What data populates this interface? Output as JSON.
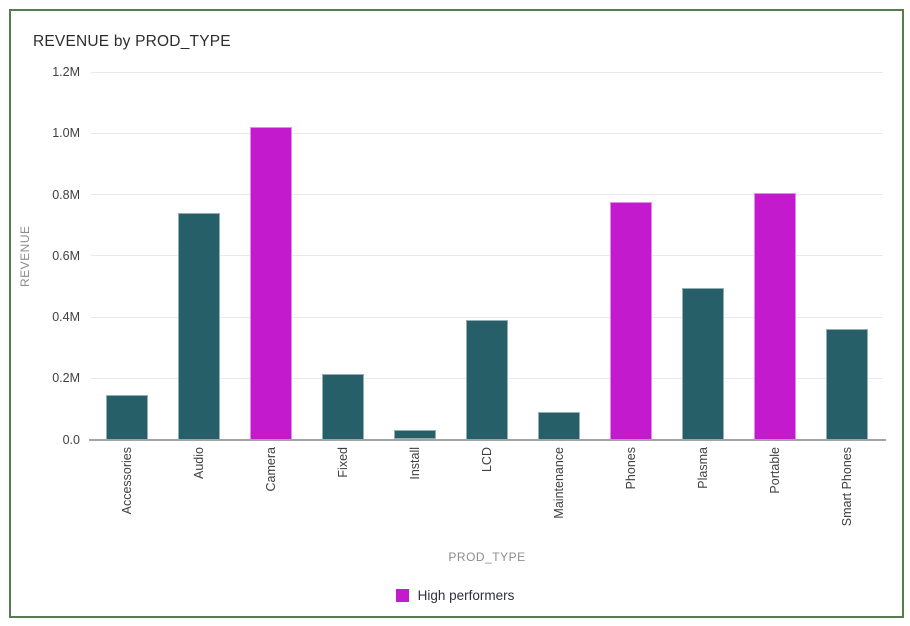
{
  "tile": {
    "border_color": "#567d4e"
  },
  "chart_data": {
    "type": "bar",
    "title": "REVENUE by PROD_TYPE",
    "xlabel": "PROD_TYPE",
    "ylabel": "REVENUE",
    "categories": [
      "Accessories",
      "Audio",
      "Camera",
      "Fixed",
      "Install",
      "LCD",
      "Maintenance",
      "Phones",
      "Plasma",
      "Portable",
      "Smart Phones"
    ],
    "values": [
      0.145,
      0.74,
      1.02,
      0.215,
      0.032,
      0.39,
      0.09,
      0.775,
      0.495,
      0.805,
      0.36
    ],
    "values_unit": "millions",
    "ylim": [
      0,
      1.2
    ],
    "y_tick_labels": [
      "0.0",
      "0.2M",
      "0.4M",
      "0.6M",
      "0.8M",
      "1.0M",
      "1.2M"
    ],
    "grid": "horizontal",
    "legend_position": "bottom-center",
    "high_performers": [
      "Camera",
      "Phones",
      "Portable"
    ],
    "colors": {
      "bar_default": "#275f69",
      "bar_high_performer": "#c31acd",
      "axis_line": "#a3a3a3",
      "gridline": "#e7e9ef"
    },
    "legend": {
      "items": [
        {
          "label": "High performers",
          "color": "#c31acd"
        }
      ]
    }
  }
}
